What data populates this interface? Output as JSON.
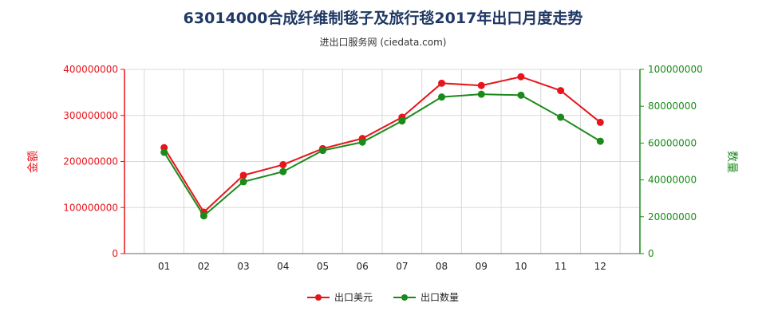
{
  "chart_data": {
    "type": "line",
    "title": "63014000合成纤维制毯子及旅行毯2017年出口月度走势",
    "subtitle": "进出口服务网 (ciedata.com)",
    "categories": [
      "01",
      "02",
      "03",
      "04",
      "05",
      "06",
      "07",
      "08",
      "09",
      "10",
      "11",
      "12"
    ],
    "y_left": {
      "label": "金额",
      "ticks": [
        "0",
        "100000000",
        "200000000",
        "300000000",
        "400000000"
      ],
      "ylim": [
        0,
        400000000
      ],
      "color": "#e8141b"
    },
    "y_right": {
      "label": "数量",
      "ticks": [
        "0",
        "20000000",
        "40000000",
        "60000000",
        "80000000",
        "100000000"
      ],
      "ylim": [
        0,
        100000000
      ],
      "color": "#1a8a1a"
    },
    "series": [
      {
        "name": "出口美元",
        "axis": "left",
        "color": "#e8141b",
        "values": [
          230000000,
          90000000,
          170000000,
          193000000,
          228000000,
          250000000,
          296000000,
          370000000,
          365000000,
          384000000,
          354000000,
          285000000
        ]
      },
      {
        "name": "出口数量",
        "axis": "right",
        "color": "#1a8a1a",
        "values": [
          55000000,
          20500000,
          39000000,
          44500000,
          56000000,
          60500000,
          72000000,
          85000000,
          86500000,
          86000000,
          74000000,
          61000000
        ]
      }
    ],
    "grid": true,
    "legend": "bottom-center"
  }
}
